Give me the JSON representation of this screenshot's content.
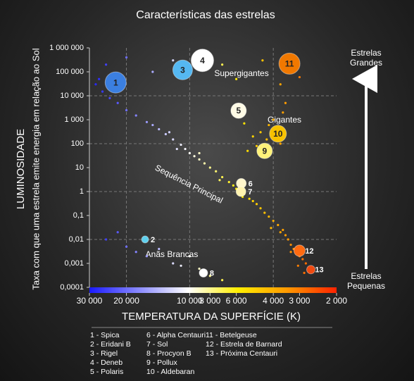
{
  "chart_data": {
    "type": "scatter",
    "title": "Características das estrelas",
    "xlabel": "TEMPERATURA DA SUPERFÍCIE (K)",
    "ylabel": "LUMINOSIDADE",
    "ylabel2": "Taxa com que uma estrela emite energia em relação ao Sol",
    "xscale": "log",
    "yscale": "log",
    "grid": true,
    "xlim": [
      30000,
      2000
    ],
    "ylim": [
      0.0001,
      1000000
    ],
    "xticks": [
      {
        "value": 30000,
        "label": "30 000"
      },
      {
        "value": 20000,
        "label": "20 000"
      },
      {
        "value": 10000,
        "label": "10 000"
      },
      {
        "value": 8000,
        "label": "8 000"
      },
      {
        "value": 6000,
        "label": "6 000"
      },
      {
        "value": 4000,
        "label": "4 000"
      },
      {
        "value": 3000,
        "label": "3 000"
      },
      {
        "value": 2000,
        "label": "2 000"
      }
    ],
    "yticks": [
      {
        "value": 1000000,
        "label": "1 000 000"
      },
      {
        "value": 100000,
        "label": "100 000"
      },
      {
        "value": 10000,
        "label": "10 000"
      },
      {
        "value": 1000,
        "label": "1 000"
      },
      100,
      10,
      1,
      {
        "value": 0.1,
        "label": "0,1"
      },
      {
        "value": 0.01,
        "label": "0,01"
      },
      {
        "value": 0.001,
        "label": "0,001"
      },
      {
        "value": 0.0001,
        "label": "0,0001"
      }
    ],
    "colorscale": [
      "#1a1aff",
      "#8a8aff",
      "#ffffff",
      "#ffee00",
      "#ff9900",
      "#ff2200"
    ],
    "annotations": [
      "Supergigantes",
      "Gigantes",
      "Sequência Principal",
      "Anãs Brancas"
    ],
    "arrow_labels": [
      "Estrelas Grandes",
      "Estrelas Pequenas"
    ],
    "stars": {
      "labels": [
        "1",
        "2",
        "3",
        "4",
        "5",
        "6",
        "7",
        "8",
        "9",
        "10",
        "11",
        "12",
        "13"
      ],
      "x": [
        22500,
        16300,
        10800,
        8700,
        5850,
        5680,
        5700,
        8600,
        4400,
        3800,
        3350,
        3000,
        2650
      ],
      "y": [
        36000,
        0.01,
        120000,
        300000,
        2400,
        2.2,
        1,
        0.0004,
        50,
        260,
        220000,
        0.0034,
        0.00055
      ],
      "sizes": [
        15,
        5,
        14,
        16,
        11,
        7,
        7,
        6,
        11,
        12,
        15,
        8,
        6
      ],
      "colors": [
        "#3b7fe0",
        "#5fd0ee",
        "#55b8f2",
        "#ffffff",
        "#fffbe6",
        "#fff6cc",
        "#fff3b0",
        "#ffffff",
        "#fff27a",
        "#f7c200",
        "#f07800",
        "#ff6a10",
        "#f04a10"
      ]
    },
    "legend": [
      "1 - Spica",
      "2 - Eridani B",
      "3 - Rigel",
      "4 - Deneb",
      "5 - Polaris",
      "6 - Alpha Centauri",
      "7 - Sol",
      "8 - Procyon B",
      "9 - Pollux",
      "10 - Aldebaran",
      "11 - Betelgeuse",
      "12 - Estrela de Barnard",
      "13 - Próxima Centauri"
    ],
    "points": {
      "x": [
        28000,
        26000,
        24000,
        22000,
        20000,
        18000,
        16000,
        15000,
        14000,
        13000,
        12000,
        11000,
        10500,
        10000,
        9500,
        9000,
        8500,
        8000,
        7500,
        7000,
        6500,
        6200,
        6000,
        5800,
        5500,
        5200,
        5000,
        4800,
        4600,
        4400,
        4200,
        4000,
        3800,
        3600,
        3500,
        3400,
        3300,
        3200,
        3100,
        3000,
        2900,
        2800,
        2700,
        2600,
        12500,
        11500,
        9000,
        7200,
        5600,
        4100,
        3700,
        3300,
        3050,
        2850,
        5000,
        4800,
        4600,
        4500,
        4300,
        4200,
        4000,
        3900,
        3700,
        3600,
        5300,
        5500,
        3500,
        25000,
        20000,
        15000,
        12000,
        7000,
        6000,
        4500,
        3700,
        3200,
        3000,
        27000,
        25000,
        20000,
        18000,
        16000,
        14000,
        12000,
        11000,
        10000,
        9000,
        8000,
        7000,
        22000
      ],
      "y": [
        30000,
        15000,
        8000,
        5000,
        2500,
        1500,
        800,
        600,
        400,
        250,
        150,
        90,
        60,
        40,
        30,
        22,
        15,
        10,
        7,
        4,
        2.5,
        1.8,
        1.3,
        1.1,
        0.8,
        0.5,
        0.4,
        0.3,
        0.2,
        0.13,
        0.09,
        0.06,
        0.04,
        0.025,
        0.015,
        0.01,
        0.006,
        0.004,
        0.003,
        0.002,
        0.0015,
        0.001,
        0.0007,
        0.0005,
        300,
        60,
        40,
        3,
        0.6,
        0.03,
        0.02,
        0.003,
        0.0008,
        0.0004,
        200,
        80,
        300,
        30,
        150,
        600,
        1000,
        400,
        100,
        2000,
        50,
        700,
        5000,
        200000,
        400000,
        100000,
        300000,
        200000,
        50000,
        300000,
        30000,
        500000,
        60000,
        50000,
        0.01,
        0.005,
        0.003,
        0.002,
        0.004,
        0.001,
        0.0008,
        0.002,
        0.0006,
        0.0003,
        0.0002,
        0.02
      ]
    }
  }
}
